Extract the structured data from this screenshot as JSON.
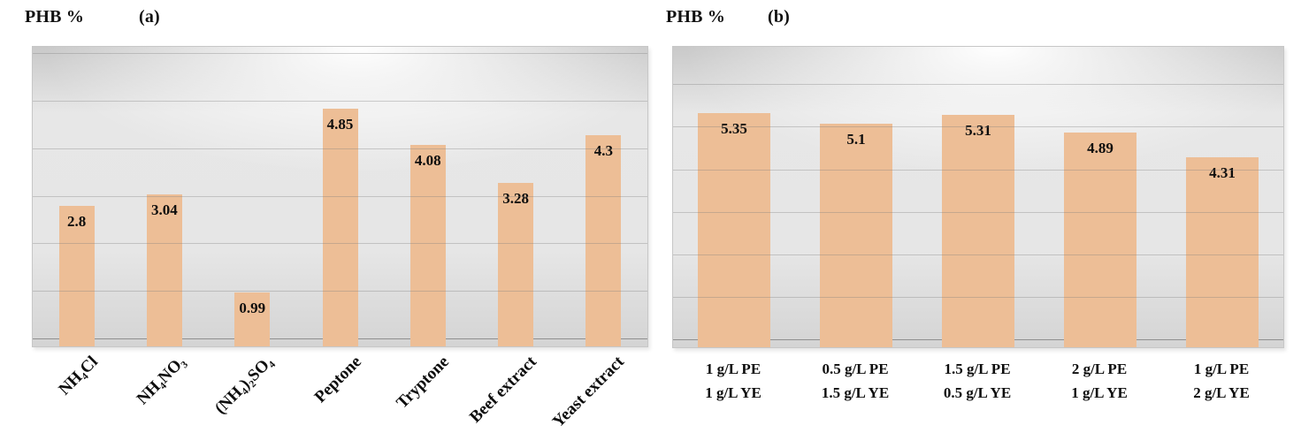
{
  "page": {
    "background": "#ffffff"
  },
  "chart_data": [
    {
      "type": "bar",
      "panel_label": "(a)",
      "ylabel": "PHB %",
      "categories": [
        "NH₄Cl",
        "NH₄NO₃",
        "(NH₄)₂SO₄",
        "Peptone",
        "Tryptone",
        "Beef extract",
        "Yeast extract"
      ],
      "values": [
        2.8,
        3.04,
        0.99,
        4.85,
        4.08,
        3.28,
        4.3
      ],
      "value_labels": [
        "2.8",
        "3.04",
        "0.99",
        "4.85",
        "4.08",
        "3.28",
        "4.3"
      ],
      "ylim": [
        0,
        6.15
      ],
      "gridlines": [
        1,
        2,
        3,
        4,
        5,
        6
      ],
      "grid_on": true,
      "legend": "none",
      "bar_color": "#edbe96",
      "label_style": "rotated"
    },
    {
      "type": "bar",
      "panel_label": "(b)",
      "ylabel": "PHB %",
      "categories": [
        [
          "1 g/L PE",
          "1 g/L YE"
        ],
        [
          "0.5 g/L PE",
          "1.5 g/L YE"
        ],
        [
          "1.5 g/L PE",
          "0.5 g/L YE"
        ],
        [
          "2 g/L PE",
          "1 g/L YE"
        ],
        [
          "1 g/L PE",
          "2 g/L YE"
        ]
      ],
      "values": [
        5.35,
        5.1,
        5.31,
        4.89,
        4.31
      ],
      "value_labels": [
        "5.35",
        "5.1",
        "5.31",
        "4.89",
        "4.31"
      ],
      "ylim": [
        0,
        6.9
      ],
      "gridlines": [
        1,
        2,
        3,
        4,
        5,
        6
      ],
      "grid_on": true,
      "legend": "none",
      "bar_color": "#edbe96",
      "label_style": "stacked"
    }
  ]
}
